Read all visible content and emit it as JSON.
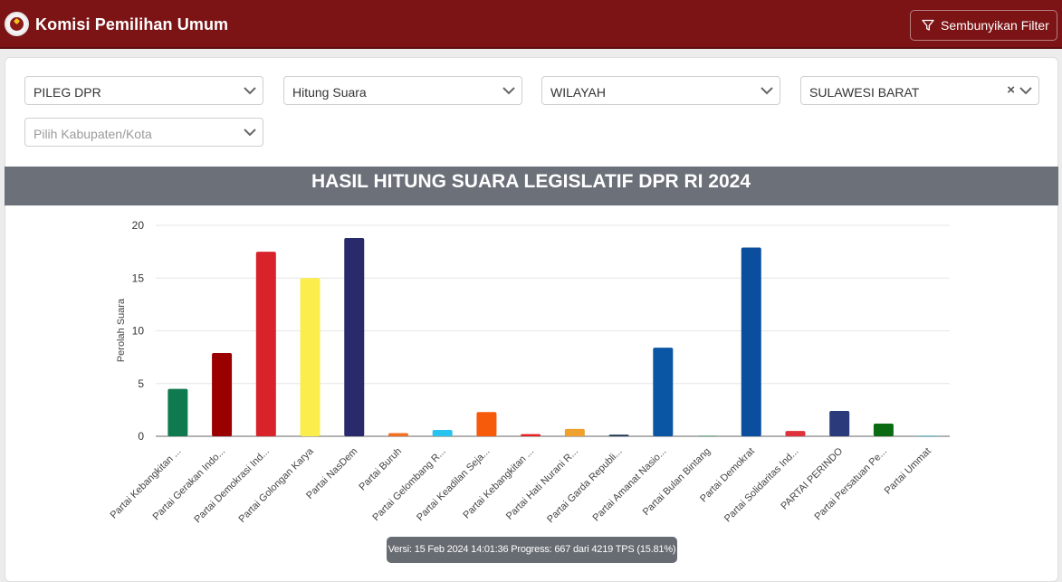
{
  "header": {
    "app_title": "Komisi Pemilihan Umum",
    "filter_button_label": "Sembunyikan Filter"
  },
  "filters": {
    "election": "PILEG DPR",
    "mode": "Hitung Suara",
    "level": "WILAYAH",
    "province": "SULAWESI BARAT",
    "regency_placeholder": "Pilih Kabupaten/Kota"
  },
  "tooltip": "Versi: 15 Feb 2024 14:01:36 Progress: 667 dari 4219 TPS (15.81%)",
  "chart_data": {
    "type": "bar",
    "title": "HASIL HITUNG SUARA LEGISLATIF DPR RI 2024",
    "xlabel": "",
    "ylabel": "Perolah Suara",
    "ylim": [
      0,
      20
    ],
    "yticks": [
      0,
      5,
      10,
      15,
      20
    ],
    "grid": true,
    "categories": [
      "Partai Kebangkitan ...",
      "Partai Gerakan Indo...",
      "Partai Demokrasi Ind...",
      "Partai Golongan Karya",
      "Partai NasDem",
      "Partai Buruh",
      "Partai Gelombang R...",
      "Partai Keadilan Seja...",
      "Partai Kebangkitan ...",
      "Partai Hati Nurani R...",
      "Partai Garda Republi...",
      "Partai Amanat Nasio...",
      "Partai Bulan Bintang",
      "Partai Demokrat",
      "Partai Solidaritas Ind...",
      "PARTAI PERINDO",
      "Partai Persatuan Pe...",
      "Partai Ummat"
    ],
    "values": [
      4.5,
      7.9,
      17.5,
      15.0,
      18.8,
      0.3,
      0.6,
      2.3,
      0.2,
      0.7,
      0.15,
      8.4,
      0.05,
      17.9,
      0.5,
      2.4,
      1.2,
      0.05
    ],
    "colors": [
      "#0f7a4f",
      "#9b0000",
      "#d8232a",
      "#fbee4c",
      "#282a6b",
      "#f36f21",
      "#29c3ef",
      "#f65a0b",
      "#e52124",
      "#f0a02c",
      "#1d3555",
      "#0b55a5",
      "#2e8b57",
      "#0b4e9e",
      "#e0323a",
      "#2a3a7a",
      "#0a6b12",
      "#17a2b8"
    ]
  }
}
